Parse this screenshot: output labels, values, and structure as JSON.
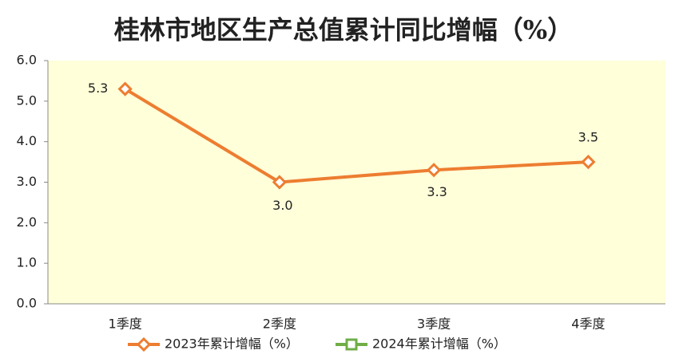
{
  "chart_data": {
    "type": "line",
    "title": "桂林市地区生产总值累计同比增幅（%）",
    "categories": [
      "1季度",
      "2季度",
      "3季度",
      "4季度"
    ],
    "series": [
      {
        "name": "2023年累计增幅（%）",
        "color": "#ED7D31",
        "values": [
          5.3,
          3.0,
          3.3,
          3.5
        ],
        "value_labels": [
          "5.3",
          "3.0",
          "3.3",
          "3.5"
        ]
      },
      {
        "name": "2024年累计增幅（%）",
        "color": "#70AD47",
        "values": [
          null,
          null,
          null,
          null
        ]
      }
    ],
    "ylim": [
      0,
      6
    ],
    "yticks": [
      {
        "value": 0,
        "label": "0.0"
      },
      {
        "value": 1,
        "label": "1.0"
      },
      {
        "value": 2,
        "label": "2.0"
      },
      {
        "value": 3,
        "label": "3.0"
      },
      {
        "value": 4,
        "label": "4.0"
      },
      {
        "value": 5,
        "label": "5.0"
      },
      {
        "value": 6,
        "label": "6.0"
      }
    ],
    "legend": "bottom"
  }
}
